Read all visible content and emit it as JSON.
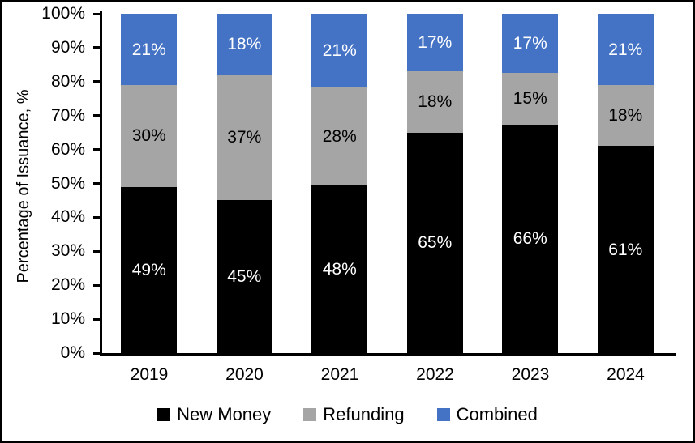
{
  "chart_data": {
    "type": "bar",
    "subtype": "stacked-percent",
    "title": "",
    "ylabel": "Percentage of Issuance, %",
    "xlabel": "",
    "ylim": [
      0,
      100
    ],
    "grid": false,
    "legend_position": "bottom",
    "y_ticks": [
      "0%",
      "10%",
      "20%",
      "30%",
      "40%",
      "50%",
      "60%",
      "70%",
      "80%",
      "90%",
      "100%"
    ],
    "categories": [
      "2019",
      "2020",
      "2021",
      "2022",
      "2023",
      "2024"
    ],
    "series": [
      {
        "name": "New Money",
        "color": "#000000",
        "label_color": "#ffffff",
        "values": [
          49,
          45,
          48,
          65,
          66,
          61
        ]
      },
      {
        "name": "Refunding",
        "color": "#A5A5A5",
        "label_color": "#000000",
        "values": [
          30,
          37,
          28,
          18,
          15,
          18
        ]
      },
      {
        "name": "Combined",
        "color": "#4472C4",
        "label_color": "#ffffff",
        "values": [
          21,
          18,
          21,
          17,
          17,
          21
        ]
      }
    ],
    "data_label_suffix": "%"
  },
  "colors": {
    "axis": "#000000",
    "background": "#ffffff",
    "frame_border": "#000000"
  }
}
